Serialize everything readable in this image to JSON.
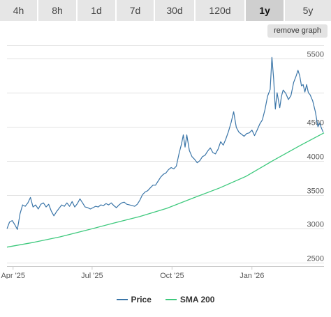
{
  "tabs": [
    {
      "label": "4h",
      "active": false
    },
    {
      "label": "8h",
      "active": false
    },
    {
      "label": "1d",
      "active": false
    },
    {
      "label": "7d",
      "active": false
    },
    {
      "label": "30d",
      "active": false
    },
    {
      "label": "120d",
      "active": false
    },
    {
      "label": "1y",
      "active": true
    },
    {
      "label": "5y",
      "active": false
    }
  ],
  "remove_graph_label": "remove graph",
  "legend": {
    "price_label": "Price",
    "sma_label": "SMA 200"
  },
  "chart_data": {
    "type": "line",
    "x_tick_labels": [
      "Apr '25",
      "Jul '25",
      "Oct '25",
      "Jan '26"
    ],
    "y_ticks": [
      2500,
      3000,
      3500,
      4000,
      4500,
      5000,
      5500
    ],
    "y_tick_labels": [
      "2500",
      "3000",
      "3500",
      "4000",
      "4500",
      "",
      "5500"
    ],
    "ylim": [
      2450,
      5800
    ],
    "xlim": [
      "2025-03-25",
      "2026-03-25"
    ],
    "grid": true,
    "legend_position": "bottom",
    "series": [
      {
        "name": "Price",
        "color": "#3a75a8",
        "points": [
          [
            "2025-03-25",
            3000
          ],
          [
            "2025-03-28",
            3100
          ],
          [
            "2025-03-31",
            3120
          ],
          [
            "2025-04-03",
            3060
          ],
          [
            "2025-04-06",
            2990
          ],
          [
            "2025-04-09",
            3220
          ],
          [
            "2025-04-12",
            3350
          ],
          [
            "2025-04-15",
            3330
          ],
          [
            "2025-04-18",
            3380
          ],
          [
            "2025-04-21",
            3460
          ],
          [
            "2025-04-24",
            3320
          ],
          [
            "2025-04-27",
            3350
          ],
          [
            "2025-04-30",
            3290
          ],
          [
            "2025-05-03",
            3360
          ],
          [
            "2025-05-06",
            3380
          ],
          [
            "2025-05-09",
            3320
          ],
          [
            "2025-05-12",
            3360
          ],
          [
            "2025-05-15",
            3260
          ],
          [
            "2025-05-18",
            3190
          ],
          [
            "2025-05-21",
            3250
          ],
          [
            "2025-05-24",
            3300
          ],
          [
            "2025-05-27",
            3350
          ],
          [
            "2025-05-30",
            3330
          ],
          [
            "2025-06-02",
            3380
          ],
          [
            "2025-06-05",
            3330
          ],
          [
            "2025-06-08",
            3400
          ],
          [
            "2025-06-11",
            3320
          ],
          [
            "2025-06-14",
            3370
          ],
          [
            "2025-06-17",
            3440
          ],
          [
            "2025-06-20",
            3380
          ],
          [
            "2025-06-23",
            3320
          ],
          [
            "2025-06-26",
            3310
          ],
          [
            "2025-06-29",
            3290
          ],
          [
            "2025-07-02",
            3310
          ],
          [
            "2025-07-05",
            3330
          ],
          [
            "2025-07-08",
            3320
          ],
          [
            "2025-07-11",
            3350
          ],
          [
            "2025-07-14",
            3340
          ],
          [
            "2025-07-17",
            3370
          ],
          [
            "2025-07-20",
            3350
          ],
          [
            "2025-07-23",
            3380
          ],
          [
            "2025-07-26",
            3340
          ],
          [
            "2025-07-29",
            3310
          ],
          [
            "2025-08-01",
            3350
          ],
          [
            "2025-08-04",
            3380
          ],
          [
            "2025-08-07",
            3390
          ],
          [
            "2025-08-10",
            3360
          ],
          [
            "2025-08-13",
            3350
          ],
          [
            "2025-08-16",
            3340
          ],
          [
            "2025-08-19",
            3330
          ],
          [
            "2025-08-22",
            3360
          ],
          [
            "2025-08-25",
            3420
          ],
          [
            "2025-08-28",
            3500
          ],
          [
            "2025-08-31",
            3540
          ],
          [
            "2025-09-03",
            3560
          ],
          [
            "2025-09-06",
            3600
          ],
          [
            "2025-09-09",
            3640
          ],
          [
            "2025-09-12",
            3640
          ],
          [
            "2025-09-15",
            3700
          ],
          [
            "2025-09-18",
            3760
          ],
          [
            "2025-09-21",
            3800
          ],
          [
            "2025-09-24",
            3820
          ],
          [
            "2025-09-27",
            3870
          ],
          [
            "2025-09-30",
            3900
          ],
          [
            "2025-10-03",
            3880
          ],
          [
            "2025-10-06",
            3920
          ],
          [
            "2025-10-09",
            4100
          ],
          [
            "2025-10-12",
            4250
          ],
          [
            "2025-10-14",
            4380
          ],
          [
            "2025-10-16",
            4200
          ],
          [
            "2025-10-18",
            4380
          ],
          [
            "2025-10-21",
            4150
          ],
          [
            "2025-10-24",
            4060
          ],
          [
            "2025-10-27",
            4020
          ],
          [
            "2025-10-30",
            3970
          ],
          [
            "2025-11-02",
            4000
          ],
          [
            "2025-11-05",
            4060
          ],
          [
            "2025-11-08",
            4080
          ],
          [
            "2025-11-11",
            4140
          ],
          [
            "2025-11-14",
            4190
          ],
          [
            "2025-11-17",
            4120
          ],
          [
            "2025-11-20",
            4100
          ],
          [
            "2025-11-23",
            4170
          ],
          [
            "2025-11-26",
            4280
          ],
          [
            "2025-11-29",
            4230
          ],
          [
            "2025-12-02",
            4320
          ],
          [
            "2025-12-05",
            4430
          ],
          [
            "2025-12-08",
            4560
          ],
          [
            "2025-12-11",
            4720
          ],
          [
            "2025-12-14",
            4490
          ],
          [
            "2025-12-17",
            4420
          ],
          [
            "2025-12-20",
            4390
          ],
          [
            "2025-12-23",
            4360
          ],
          [
            "2025-12-26",
            4400
          ],
          [
            "2025-12-29",
            4410
          ],
          [
            "2026-01-01",
            4450
          ],
          [
            "2026-01-04",
            4370
          ],
          [
            "2026-01-07",
            4450
          ],
          [
            "2026-01-10",
            4540
          ],
          [
            "2026-01-13",
            4600
          ],
          [
            "2026-01-16",
            4750
          ],
          [
            "2026-01-19",
            4950
          ],
          [
            "2026-01-22",
            5050
          ],
          [
            "2026-01-24",
            5520
          ],
          [
            "2026-01-26",
            5200
          ],
          [
            "2026-01-28",
            4760
          ],
          [
            "2026-01-30",
            5000
          ],
          [
            "2026-02-02",
            4780
          ],
          [
            "2026-02-04",
            4950
          ],
          [
            "2026-02-06",
            5040
          ],
          [
            "2026-02-09",
            4990
          ],
          [
            "2026-02-12",
            4900
          ],
          [
            "2026-02-15",
            4960
          ],
          [
            "2026-02-18",
            5150
          ],
          [
            "2026-02-21",
            5250
          ],
          [
            "2026-02-23",
            5330
          ],
          [
            "2026-02-25",
            5250
          ],
          [
            "2026-02-27",
            5100
          ],
          [
            "2026-03-01",
            5120
          ],
          [
            "2026-03-03",
            5010
          ],
          [
            "2026-03-05",
            5120
          ],
          [
            "2026-03-07",
            5000
          ],
          [
            "2026-03-09",
            4970
          ],
          [
            "2026-03-12",
            4880
          ],
          [
            "2026-03-15",
            4720
          ],
          [
            "2026-03-18",
            4500
          ],
          [
            "2026-03-20",
            4550
          ],
          [
            "2026-03-22",
            4480
          ],
          [
            "2026-03-24",
            4420
          ]
        ]
      },
      {
        "name": "SMA 200",
        "color": "#3ec97d",
        "points": [
          [
            "2025-03-25",
            2730
          ],
          [
            "2025-04-25",
            2800
          ],
          [
            "2025-05-25",
            2880
          ],
          [
            "2025-06-25",
            2980
          ],
          [
            "2025-07-25",
            3080
          ],
          [
            "2025-08-25",
            3180
          ],
          [
            "2025-09-25",
            3300
          ],
          [
            "2025-10-25",
            3450
          ],
          [
            "2025-11-25",
            3600
          ],
          [
            "2025-12-25",
            3770
          ],
          [
            "2026-01-25",
            4000
          ],
          [
            "2026-02-25",
            4220
          ],
          [
            "2026-03-25",
            4410
          ]
        ]
      }
    ]
  }
}
